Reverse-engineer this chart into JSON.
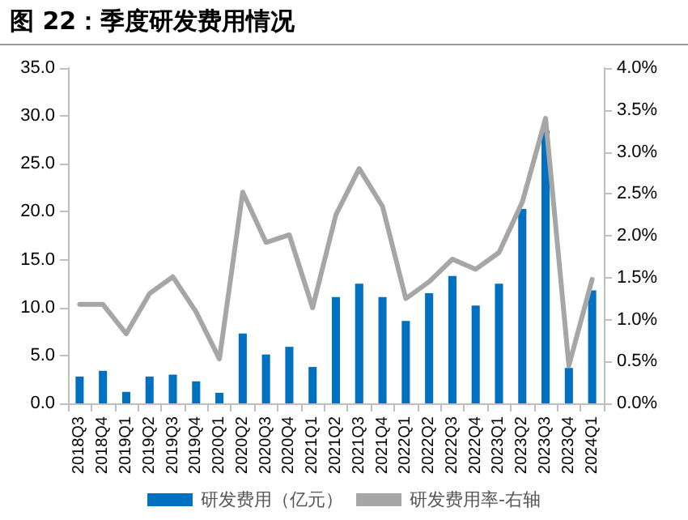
{
  "chart_data": {
    "type": "bar",
    "title": "图 22：季度研发费用情况",
    "categories": [
      "2018Q3",
      "2018Q4",
      "2019Q1",
      "2019Q2",
      "2019Q3",
      "2019Q4",
      "2020Q1",
      "2020Q2",
      "2020Q3",
      "2020Q4",
      "2021Q1",
      "2021Q2",
      "2021Q3",
      "2021Q4",
      "2022Q1",
      "2022Q2",
      "2022Q3",
      "2022Q4",
      "2023Q1",
      "2023Q2",
      "2023Q3",
      "2023Q4",
      "2024Q1"
    ],
    "series": [
      {
        "name": "研发费用（亿元）",
        "color": "#0070c0",
        "values": [
          2.8,
          3.4,
          1.2,
          2.8,
          3.0,
          2.3,
          1.1,
          7.3,
          5.1,
          5.9,
          3.8,
          11.1,
          12.5,
          11.1,
          8.6,
          11.5,
          13.3,
          10.2,
          12.5,
          20.3,
          28.5,
          3.7,
          11.8
        ]
      },
      {
        "name": "研发费用率-右轴",
        "type": "line",
        "axis": "y2",
        "color": "#a6a6a6",
        "values": [
          1.18,
          1.18,
          0.83,
          1.31,
          1.51,
          1.09,
          0.53,
          2.52,
          1.92,
          2.01,
          1.14,
          2.25,
          2.8,
          2.35,
          1.25,
          1.45,
          1.72,
          1.6,
          1.8,
          2.4,
          3.4,
          0.45,
          1.48
        ]
      }
    ],
    "ylim": [
      0,
      35
    ],
    "yticks": [
      {
        "value": 0,
        "label": "0.0"
      },
      {
        "value": 5,
        "label": "5.0"
      },
      {
        "value": 10,
        "label": "10.0"
      },
      {
        "value": 15,
        "label": "15.0"
      },
      {
        "value": 20,
        "label": "20.0"
      },
      {
        "value": 25,
        "label": "25.0"
      },
      {
        "value": 30,
        "label": "30.0"
      },
      {
        "value": 35,
        "label": "35.0"
      }
    ],
    "y2lim": [
      0,
      4
    ],
    "y2ticks": [
      {
        "value": 0,
        "label": "0.0%"
      },
      {
        "value": 0.5,
        "label": "0.5%"
      },
      {
        "value": 1,
        "label": "1.0%"
      },
      {
        "value": 1.5,
        "label": "1.5%"
      },
      {
        "value": 2,
        "label": "2.0%"
      },
      {
        "value": 2.5,
        "label": "2.5%"
      },
      {
        "value": 3,
        "label": "3.0%"
      },
      {
        "value": 3.5,
        "label": "3.5%"
      },
      {
        "value": 4,
        "label": "4.0%"
      }
    ],
    "grid": false,
    "legend": "bottom",
    "marker": "none",
    "line_style": "solid"
  }
}
